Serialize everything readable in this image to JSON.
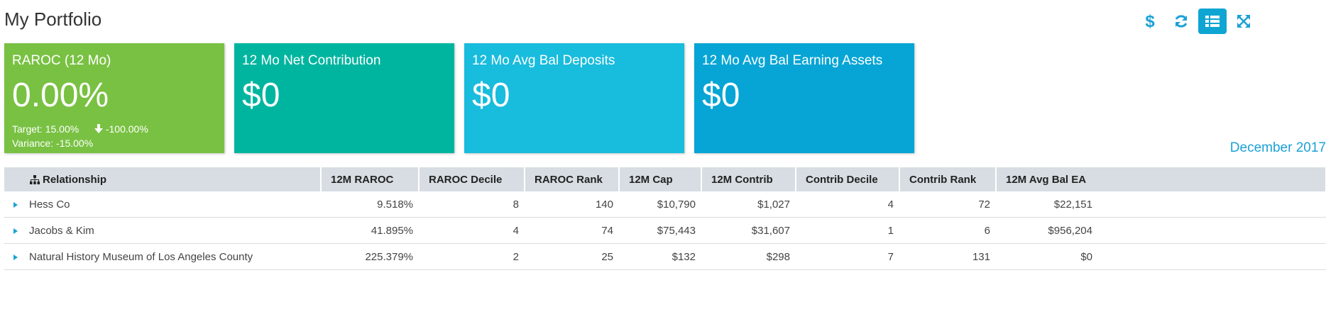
{
  "page": {
    "title": "My Portfolio"
  },
  "toolbar": {
    "items": [
      {
        "name": "currency",
        "icon": "dollar-icon"
      },
      {
        "name": "refresh",
        "icon": "refresh-icon"
      },
      {
        "name": "list-view",
        "icon": "list-icon",
        "active": true
      },
      {
        "name": "fullscreen",
        "icon": "expand-icon"
      }
    ]
  },
  "cards": {
    "raroc": {
      "title": "RAROC (12 Mo)",
      "value": "0.00%",
      "target": "Target: 15.00%",
      "change": "-100.00%",
      "variance": "Variance: -15.00%",
      "color": "#79c143"
    },
    "net_contribution": {
      "title": "12 Mo Net Contribution",
      "value": "$0",
      "color": "#00b59f"
    },
    "avg_bal_deposits": {
      "title": "12 Mo Avg Bal Deposits",
      "value": "$0",
      "color": "#18bcdd"
    },
    "avg_bal_earning_assets": {
      "title": "12 Mo Avg Bal Earning Assets",
      "value": "$0",
      "color": "#06a5d5"
    }
  },
  "as_of": "December 2017",
  "table": {
    "columns": [
      "Relationship",
      "12M RAROC",
      "RAROC Decile",
      "RAROC Rank",
      "12M Cap",
      "12M Contrib",
      "Contrib Decile",
      "Contrib Rank",
      "12M Avg Bal EA"
    ],
    "rows": [
      {
        "relationship": "Hess Co",
        "raroc": "9.518%",
        "raroc_decile": "8",
        "raroc_rank": "140",
        "cap": "$10,790",
        "contrib": "$1,027",
        "contrib_decile": "4",
        "contrib_rank": "72",
        "avg_bal_ea": "$22,151"
      },
      {
        "relationship": "Jacobs & Kim",
        "raroc": "41.895%",
        "raroc_decile": "4",
        "raroc_rank": "74",
        "cap": "$75,443",
        "contrib": "$31,607",
        "contrib_decile": "1",
        "contrib_rank": "6",
        "avg_bal_ea": "$956,204"
      },
      {
        "relationship": "Natural History Museum of Los Angeles County",
        "raroc": "225.379%",
        "raroc_decile": "2",
        "raroc_rank": "25",
        "cap": "$132",
        "contrib": "$298",
        "contrib_decile": "7",
        "contrib_rank": "131",
        "avg_bal_ea": "$0"
      }
    ]
  }
}
